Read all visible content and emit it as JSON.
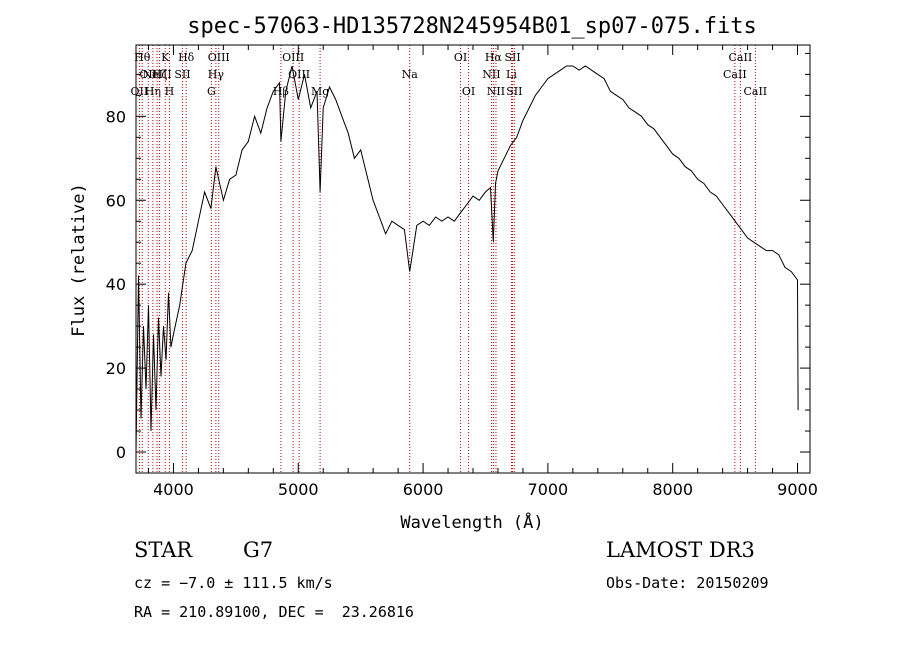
{
  "chart_data": {
    "type": "line",
    "title": "spec-57063-HD135728N245954B01_sp07-075.fits",
    "xlabel": "Wavelength (Å)",
    "ylabel": "Flux (relative)",
    "xlim": [
      3700,
      9100
    ],
    "ylim": [
      -5,
      97
    ],
    "xticks": [
      4000,
      5000,
      6000,
      7000,
      8000,
      9000
    ],
    "yticks": [
      0,
      20,
      40,
      60,
      80
    ],
    "grid": false,
    "series": [
      {
        "values_note": "",
        "x": [
          3700,
          3720,
          3740,
          3760,
          3780,
          3800,
          3820,
          3840,
          3860,
          3880,
          3900,
          3920,
          3940,
          3960,
          3980,
          4000,
          4050,
          4100,
          4150,
          4200,
          4250,
          4300,
          4340,
          4400,
          4450,
          4500,
          4550,
          4600,
          4650,
          4700,
          4750,
          4800,
          4850,
          4861,
          4900,
          4950,
          5000,
          5050,
          5100,
          5150,
          5175,
          5200,
          5250,
          5300,
          5350,
          5400,
          5450,
          5500,
          5550,
          5600,
          5650,
          5700,
          5750,
          5800,
          5850,
          5893,
          5950,
          6000,
          6050,
          6100,
          6150,
          6200,
          6250,
          6300,
          6350,
          6400,
          6450,
          6500,
          6540,
          6563,
          6580,
          6600,
          6650,
          6700,
          6750,
          6800,
          6850,
          6900,
          6950,
          7000,
          7050,
          7100,
          7150,
          7200,
          7250,
          7300,
          7350,
          7400,
          7450,
          7500,
          7550,
          7600,
          7650,
          7700,
          7750,
          7800,
          7850,
          7900,
          7950,
          8000,
          8050,
          8100,
          8150,
          8200,
          8250,
          8300,
          8350,
          8400,
          8450,
          8500,
          8550,
          8600,
          8650,
          8700,
          8750,
          8800,
          8850,
          8900,
          8950,
          9000,
          9005
        ],
        "y": [
          0,
          42,
          8,
          30,
          15,
          35,
          5,
          28,
          10,
          32,
          18,
          30,
          22,
          38,
          25,
          28,
          35,
          45,
          48,
          55,
          62,
          58,
          68,
          60,
          65,
          66,
          72,
          74,
          80,
          76,
          82,
          86,
          88,
          74,
          86,
          92,
          84,
          90,
          82,
          86,
          62,
          82,
          87,
          84,
          80,
          76,
          70,
          72,
          66,
          60,
          56,
          52,
          55,
          54,
          53,
          43,
          54,
          55,
          54,
          56,
          55,
          56,
          55,
          57,
          59,
          61,
          60,
          62,
          63,
          50,
          64,
          67,
          70,
          73,
          75,
          79,
          82,
          85,
          87,
          89,
          90,
          91,
          92,
          92,
          91,
          92,
          91,
          90,
          89,
          86,
          85,
          84,
          82,
          81,
          80,
          78,
          77,
          75,
          73,
          71,
          70,
          68,
          67,
          65,
          64,
          62,
          61,
          59,
          57,
          55,
          53,
          51,
          50,
          49,
          48,
          48,
          47,
          44,
          43,
          41,
          10
        ]
      }
    ],
    "lines": [
      {
        "wl": 3727,
        "label": "OII",
        "row": 2
      },
      {
        "wl": 3750,
        "label": "Hθ",
        "row": 0
      },
      {
        "wl": 3798,
        "label": "OII",
        "row": 1
      },
      {
        "wl": 3835,
        "label": "Hη",
        "row": 2
      },
      {
        "wl": 3869,
        "label": "NeIII",
        "row": 1
      },
      {
        "wl": 3889,
        "label": "Hζ",
        "row": 1
      },
      {
        "wl": 3934,
        "label": "K",
        "row": 0
      },
      {
        "wl": 3968,
        "label": "H",
        "row": 2
      },
      {
        "wl": 4072,
        "label": "SII",
        "row": 1
      },
      {
        "wl": 4102,
        "label": "Hδ",
        "row": 0
      },
      {
        "wl": 4304,
        "label": "G",
        "row": 2
      },
      {
        "wl": 4340,
        "label": "Hγ",
        "row": 1
      },
      {
        "wl": 4363,
        "label": "OIII",
        "row": 0
      },
      {
        "wl": 4861,
        "label": "Hβ",
        "row": 2
      },
      {
        "wl": 4959,
        "label": "OIII",
        "row": 0
      },
      {
        "wl": 5007,
        "label": "OIII",
        "row": 1
      },
      {
        "wl": 5175,
        "label": "Mg",
        "row": 2
      },
      {
        "wl": 5893,
        "label": "Na",
        "row": 1
      },
      {
        "wl": 6300,
        "label": "OI",
        "row": 0
      },
      {
        "wl": 6364,
        "label": "OI",
        "row": 2
      },
      {
        "wl": 6548,
        "label": "NII",
        "row": 1
      },
      {
        "wl": 6563,
        "label": "Hα",
        "row": 0
      },
      {
        "wl": 6584,
        "label": "NII",
        "row": 2
      },
      {
        "wl": 6708,
        "label": "Li",
        "row": 1
      },
      {
        "wl": 6717,
        "label": "SII",
        "row": 0
      },
      {
        "wl": 6731,
        "label": "SII",
        "row": 2
      },
      {
        "wl": 8498,
        "label": "CaII",
        "row": 1
      },
      {
        "wl": 8542,
        "label": "CaII",
        "row": 0
      },
      {
        "wl": 8662,
        "label": "CaII",
        "row": 2
      }
    ]
  },
  "info": {
    "obj_class": "STAR",
    "subclass": "G7",
    "survey": "LAMOST DR3",
    "cz": "cz = −7.0 ± 111.5 km/s",
    "obs_date": "Obs-Date: 20150209",
    "radec": "RA = 210.89100, DEC =  23.26816"
  }
}
